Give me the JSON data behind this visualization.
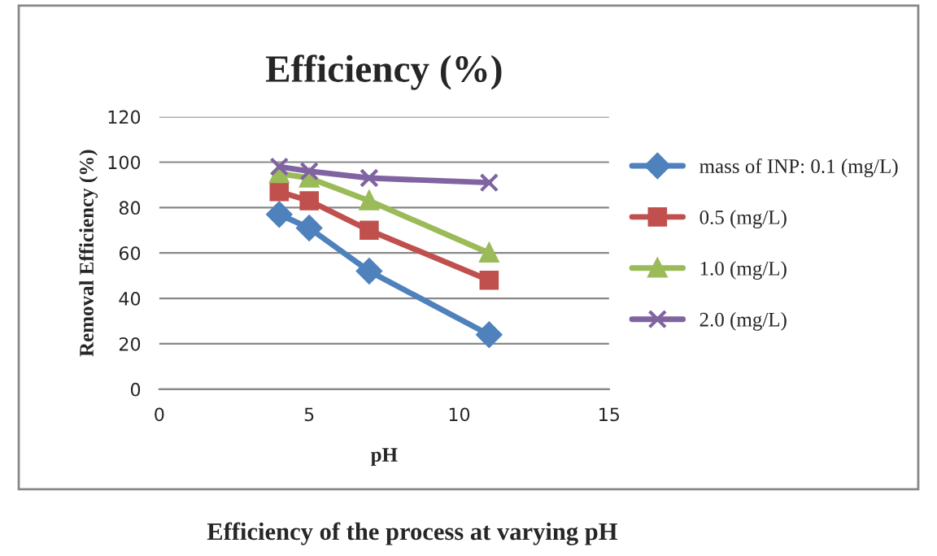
{
  "chart_data": {
    "type": "line",
    "title": "Efficiency (%)",
    "xlabel": "pH",
    "ylabel": "Removal Efficiency (%)",
    "x": [
      4,
      5,
      7,
      11
    ],
    "series": [
      {
        "name": "mass of INP: 0.1 (mg/L)",
        "color": "#4f81bd",
        "marker": "diamond",
        "values": [
          77,
          71,
          52,
          24
        ]
      },
      {
        "name": "0.5 (mg/L)",
        "color": "#c0504d",
        "marker": "square",
        "values": [
          87,
          83,
          70,
          48
        ]
      },
      {
        "name": "1.0 (mg/L)",
        "color": "#9bbb59",
        "marker": "triangle",
        "values": [
          95,
          93,
          83,
          60
        ]
      },
      {
        "name": "2.0 (mg/L)",
        "color": "#8064a2",
        "marker": "cross",
        "values": [
          98,
          96,
          93,
          91
        ]
      }
    ],
    "xlim": [
      0,
      15
    ],
    "xticks": [
      0,
      5,
      10,
      15
    ],
    "ylim": [
      0,
      120
    ],
    "yticks": [
      0,
      20,
      40,
      60,
      80,
      100,
      120
    ],
    "grid": "y",
    "legend": "right",
    "line_style": "solid",
    "annotations": [
      "Efficiency of the process at varying pH"
    ]
  }
}
